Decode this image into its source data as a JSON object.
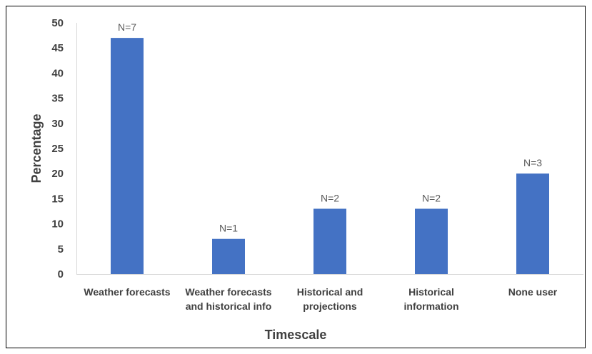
{
  "chart_data": {
    "type": "bar",
    "categories": [
      [
        "Weather forecasts"
      ],
      [
        "Weather forecasts",
        "and historical info"
      ],
      [
        "Historical and",
        "projections"
      ],
      [
        "Historical",
        "information"
      ],
      [
        "None user"
      ]
    ],
    "values": [
      47,
      7,
      13,
      13,
      20
    ],
    "data_labels": [
      "N=7",
      "N=1",
      "N=2",
      "N=2",
      "N=3"
    ],
    "title": "",
    "xlabel": "Timescale",
    "ylabel": "Percentage",
    "ylim": [
      0,
      50
    ],
    "yticks": [
      0,
      5,
      10,
      15,
      20,
      25,
      30,
      35,
      40,
      45,
      50
    ],
    "grid": false,
    "legend": "none",
    "bar_color": "#4472C4"
  }
}
